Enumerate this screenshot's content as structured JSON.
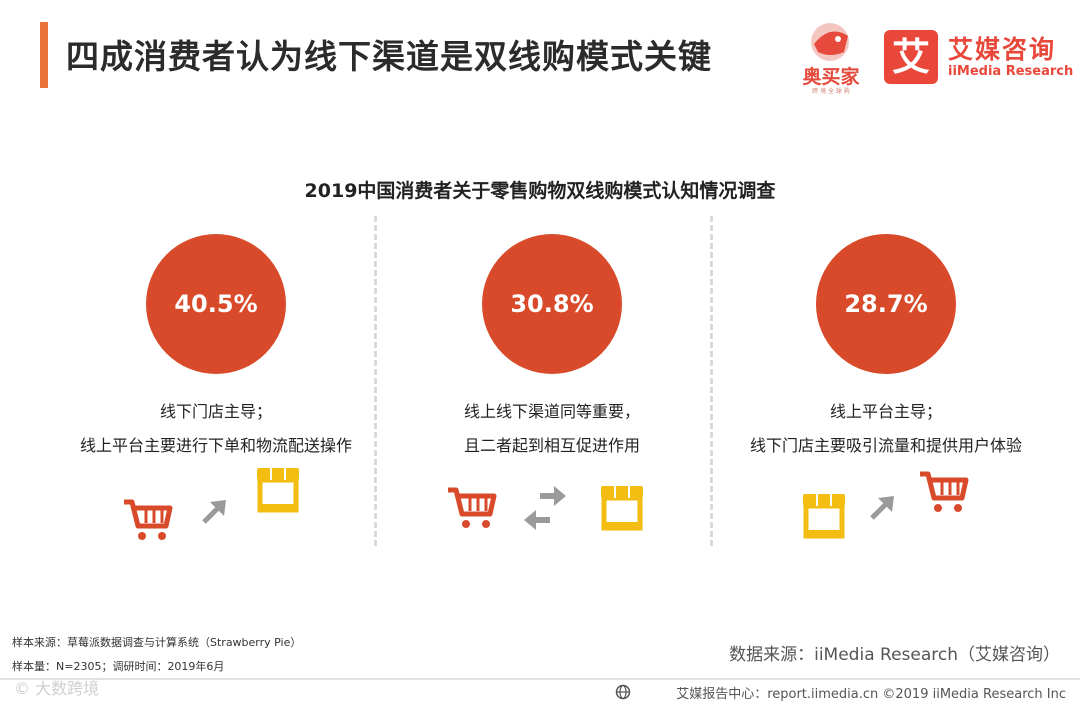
{
  "header": {
    "title": "四成消费者认为线下渠道是双线购模式关键"
  },
  "logos": {
    "aomaijia": {
      "text": "奥买家",
      "sub": "跨 境 全 球 购"
    },
    "imedia": {
      "mark": "艾",
      "cn": "艾媒咨询",
      "en": "iiMedia Research"
    }
  },
  "chart_data": {
    "type": "pie",
    "title": "2019中国消费者关于零售购物双线购模式认知情况调查",
    "categories": [
      "线下门店主导；线上平台主要进行下单和物流配送操作",
      "线上线下渠道同等重要，且二者起到相互促进作用",
      "线上平台主导；线下门店主要吸引流量和提供用户体验"
    ],
    "values": [
      40.5,
      30.8,
      28.7
    ],
    "unit": "%"
  },
  "panels": [
    {
      "value_label": "40.5%",
      "line1": "线下门店主导；",
      "line2": "线上平台主要进行下单和物流配送操作",
      "icons": [
        "cart-icon",
        "arrow-up-right-icon",
        "store-icon"
      ]
    },
    {
      "value_label": "30.8%",
      "line1": "线上线下渠道同等重要，",
      "line2": "且二者起到相互促进作用",
      "icons": [
        "cart-icon",
        "swap-arrows-icon",
        "store-icon"
      ]
    },
    {
      "value_label": "28.7%",
      "line1": "线上平台主导；",
      "line2": "线下门店主要吸引流量和提供用户体验",
      "icons": [
        "store-icon",
        "arrow-up-right-icon",
        "cart-icon"
      ]
    }
  ],
  "notes": {
    "sample_source": "样本来源：草莓派数据调查与计算系统（Strawberry Pie）",
    "sample_size": "样本量：N=2305；调研时间：2019年6月"
  },
  "source": "数据来源：iiMedia Research（艾媒咨询）",
  "footer": {
    "text": "艾媒报告中心：report.iimedia.cn ©2019 iiMedia Research Inc",
    "watermark": "© 大数跨境"
  },
  "colors": {
    "accent": "#e8743a",
    "circle": "#d84a2a",
    "cart": "#d84a2a",
    "store": "#f2bd10",
    "arrow": "#9a9a9a"
  }
}
